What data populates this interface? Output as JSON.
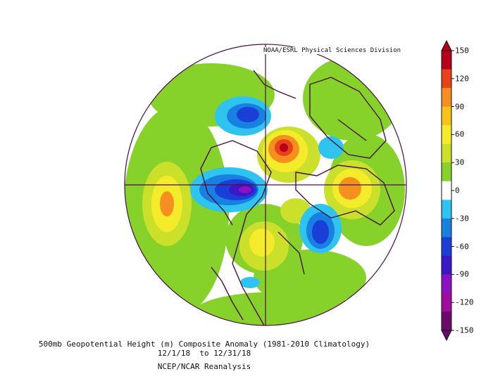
{
  "credit": "NOAA/ESRL Physical Sciences Division",
  "caption": {
    "line1": "500mb Geopotential Height (m) Composite Anomaly (1981-2010 Climatology)",
    "line2": "12/1/18  to 12/31/18",
    "line3": "NCEP/NCAR Reanalysis"
  },
  "colorbar": {
    "ticks": [
      "150",
      "120",
      "90",
      "60",
      "30",
      "0",
      "-30",
      "-60",
      "-90",
      "-120",
      "-150"
    ],
    "colors": [
      "#b8001a",
      "#e8421a",
      "#f58f1f",
      "#f7c21c",
      "#f4ec2a",
      "#cbe02a",
      "#86d12a",
      "#ffffff",
      "#2fc4ef",
      "#1880e0",
      "#1b3ed8",
      "#3a18c8",
      "#8a12c4",
      "#a20c9e",
      "#6a0a6a"
    ]
  },
  "map": {
    "projection": "north-polar-stereographic",
    "land_outline_color": "#4a1040"
  }
}
